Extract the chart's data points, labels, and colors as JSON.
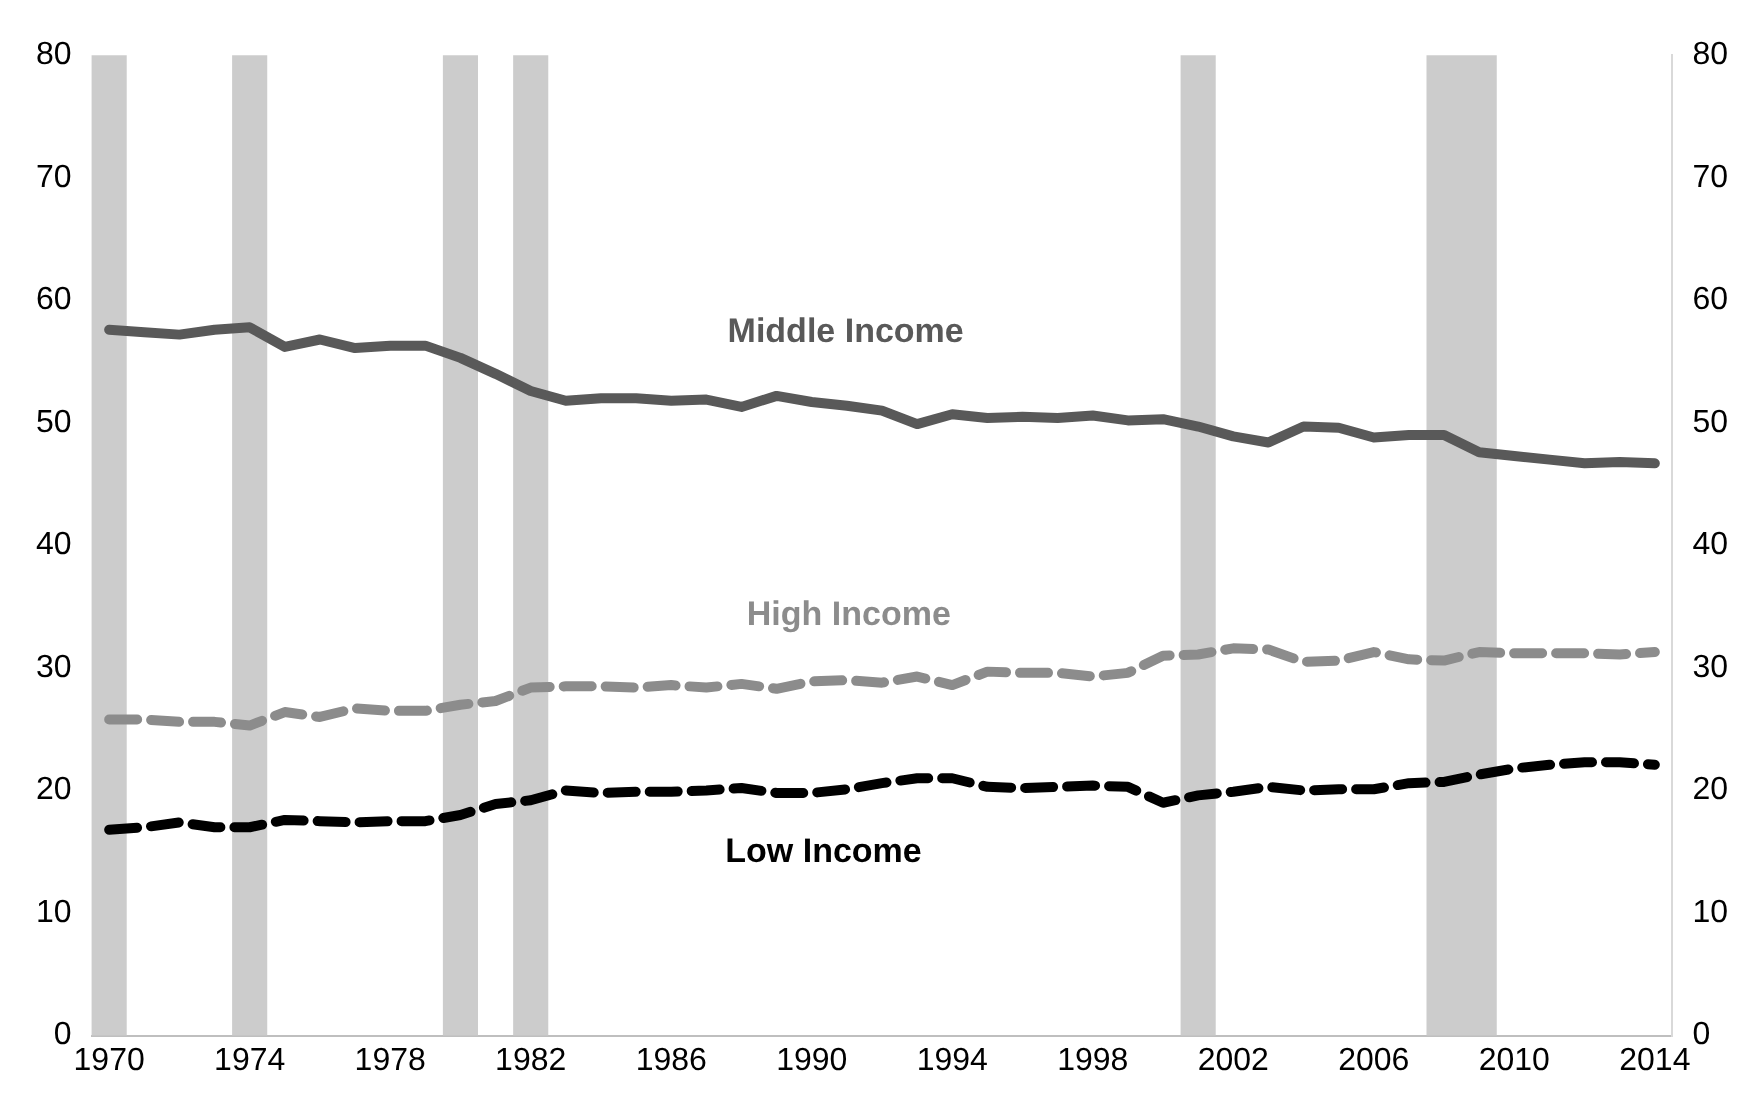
{
  "chart_data": {
    "type": "line",
    "x": [
      1970,
      1971,
      1972,
      1973,
      1974,
      1975,
      1976,
      1977,
      1978,
      1979,
      1980,
      1981,
      1982,
      1983,
      1984,
      1985,
      1986,
      1987,
      1988,
      1989,
      1990,
      1991,
      1992,
      1993,
      1994,
      1995,
      1996,
      1997,
      1998,
      1999,
      2000,
      2001,
      2002,
      2003,
      2004,
      2005,
      2006,
      2007,
      2008,
      2009,
      2010,
      2011,
      2012,
      2013,
      2014
    ],
    "series": [
      {
        "name": "Middle Income",
        "color": "#595959",
        "line_style": "solid",
        "values": [
          57.6,
          57.4,
          57.2,
          57.6,
          57.8,
          56.2,
          56.8,
          56.1,
          56.3,
          56.3,
          55.3,
          54.0,
          52.6,
          51.8,
          52.0,
          52.0,
          51.8,
          51.9,
          51.3,
          52.2,
          51.7,
          51.4,
          51.0,
          49.9,
          50.7,
          50.4,
          50.5,
          50.4,
          50.6,
          50.2,
          50.3,
          49.7,
          48.9,
          48.4,
          49.7,
          49.6,
          48.8,
          49.0,
          49.0,
          47.6,
          47.3,
          47.0,
          46.7,
          46.8,
          46.7
        ]
      },
      {
        "name": "High Income",
        "color": "#8c8c8c",
        "line_style": "dashed",
        "values": [
          25.8,
          25.8,
          25.6,
          25.6,
          25.3,
          26.4,
          26.0,
          26.7,
          26.5,
          26.5,
          27.0,
          27.3,
          28.4,
          28.5,
          28.5,
          28.4,
          28.6,
          28.4,
          28.7,
          28.3,
          28.9,
          29.0,
          28.8,
          29.3,
          28.6,
          29.7,
          29.6,
          29.6,
          29.3,
          29.6,
          31.0,
          31.1,
          31.6,
          31.5,
          30.5,
          30.6,
          31.3,
          30.7,
          30.6,
          31.3,
          31.2,
          31.2,
          31.2,
          31.1,
          31.3
        ]
      },
      {
        "name": "Low Income",
        "color": "#000000",
        "line_style": "dashed",
        "values": [
          16.8,
          17.0,
          17.4,
          17.0,
          17.0,
          17.6,
          17.5,
          17.4,
          17.5,
          17.5,
          18.0,
          18.9,
          19.2,
          20.0,
          19.8,
          19.9,
          19.9,
          20.0,
          20.2,
          19.8,
          19.8,
          20.1,
          20.6,
          21.0,
          21.0,
          20.3,
          20.2,
          20.3,
          20.4,
          20.3,
          19.0,
          19.6,
          19.9,
          20.3,
          20.0,
          20.1,
          20.1,
          20.6,
          20.7,
          21.3,
          21.8,
          22.1,
          22.3,
          22.3,
          22.1
        ]
      }
    ],
    "xlim": [
      1969.5,
      2014.5
    ],
    "xticks": [
      1970,
      1974,
      1978,
      1982,
      1986,
      1990,
      1994,
      1998,
      2002,
      2006,
      2010,
      2014
    ],
    "ylim": [
      0,
      80
    ],
    "yticks": [
      0,
      10,
      20,
      30,
      40,
      50,
      60,
      70,
      80
    ],
    "y2lim": [
      0,
      80
    ],
    "y2ticks": [
      0,
      10,
      20,
      30,
      40,
      50,
      60,
      70,
      80
    ],
    "bands": [
      {
        "axis": "x",
        "from": 1969.5,
        "to": 1970.5,
        "color": "#cccccc"
      },
      {
        "axis": "x",
        "from": 1973.5,
        "to": 1974.5,
        "color": "#cccccc"
      },
      {
        "axis": "x",
        "from": 1979.5,
        "to": 1980.5,
        "color": "#cccccc"
      },
      {
        "axis": "x",
        "from": 1981.5,
        "to": 1982.5,
        "color": "#cccccc"
      },
      {
        "axis": "x",
        "from": 2000.5,
        "to": 2001.5,
        "color": "#cccccc"
      },
      {
        "axis": "x",
        "from": 2007.5,
        "to": 2009.5,
        "color": "#cccccc"
      }
    ],
    "grid": false,
    "legend": false,
    "marker": "none"
  }
}
